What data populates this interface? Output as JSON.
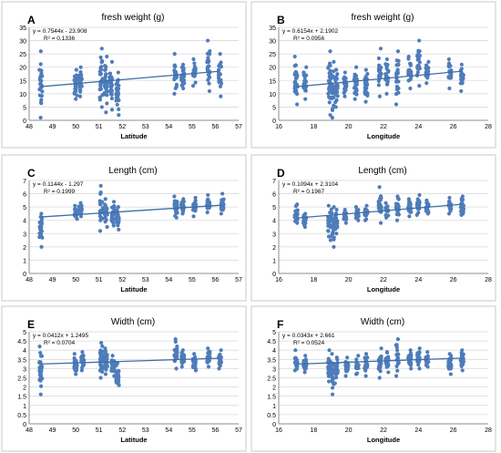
{
  "chart_data": [
    {
      "type": "scatter",
      "panel": "A",
      "title": "fresh weight (g)",
      "xlabel": "Latitude",
      "ylabel": "",
      "xlim": [
        48,
        57
      ],
      "ylim": [
        0,
        35
      ],
      "xticks": [
        "48",
        "49",
        "50",
        "51",
        "52",
        "53",
        "54",
        "55",
        "56",
        "57"
      ],
      "yticks": [
        "0",
        "5",
        "10",
        "15",
        "20",
        "25",
        "30",
        "35"
      ],
      "equation": "y = 0.7544x - 23.908",
      "r2": "R² = 0.1336",
      "trend": {
        "slope": 0.7544,
        "intercept": -23.908
      },
      "groups": [
        {
          "x": 48.5,
          "min": 1,
          "max": 26
        },
        {
          "x": 50.0,
          "min": 8,
          "max": 19
        },
        {
          "x": 50.2,
          "min": 9,
          "max": 20
        },
        {
          "x": 51.1,
          "min": 5,
          "max": 27
        },
        {
          "x": 51.3,
          "min": 3,
          "max": 24
        },
        {
          "x": 51.5,
          "min": 4,
          "max": 22
        },
        {
          "x": 51.8,
          "min": 2,
          "max": 18
        },
        {
          "x": 54.3,
          "min": 10,
          "max": 25
        },
        {
          "x": 54.6,
          "min": 12,
          "max": 21
        },
        {
          "x": 55.1,
          "min": 13,
          "max": 23
        },
        {
          "x": 55.7,
          "min": 11,
          "max": 30
        },
        {
          "x": 56.2,
          "min": 9,
          "max": 25
        }
      ]
    },
    {
      "type": "scatter",
      "panel": "B",
      "title": "fresh weight (g)",
      "xlabel": "Longitude",
      "ylabel": "",
      "xlim": [
        16,
        28
      ],
      "ylim": [
        0,
        35
      ],
      "xticks": [
        "16",
        "18",
        "20",
        "22",
        "24",
        "26",
        "28"
      ],
      "yticks": [
        "0",
        "5",
        "10",
        "15",
        "20",
        "25",
        "30",
        "35"
      ],
      "equation": "y = 0.6154x + 2.1902",
      "r2": "R² = 0.0956",
      "trend": {
        "slope": 0.6154,
        "intercept": 2.1902
      },
      "groups": [
        {
          "x": 17.0,
          "min": 6,
          "max": 24
        },
        {
          "x": 17.5,
          "min": 8,
          "max": 20
        },
        {
          "x": 18.9,
          "min": 2,
          "max": 26
        },
        {
          "x": 19.1,
          "min": 1,
          "max": 22
        },
        {
          "x": 19.3,
          "min": 5,
          "max": 19
        },
        {
          "x": 19.8,
          "min": 9,
          "max": 18
        },
        {
          "x": 20.4,
          "min": 8,
          "max": 20
        },
        {
          "x": 21.0,
          "min": 7,
          "max": 19
        },
        {
          "x": 21.8,
          "min": 9,
          "max": 27
        },
        {
          "x": 22.2,
          "min": 10,
          "max": 23
        },
        {
          "x": 22.8,
          "min": 6,
          "max": 26
        },
        {
          "x": 23.5,
          "min": 12,
          "max": 24
        },
        {
          "x": 24.0,
          "min": 13,
          "max": 30
        },
        {
          "x": 24.5,
          "min": 14,
          "max": 22
        },
        {
          "x": 25.8,
          "min": 12,
          "max": 23
        },
        {
          "x": 26.5,
          "min": 11,
          "max": 21
        }
      ]
    },
    {
      "type": "scatter",
      "panel": "C",
      "title": "Length (cm)",
      "xlabel": "Latitude",
      "ylabel": "",
      "xlim": [
        48,
        57
      ],
      "ylim": [
        0,
        7
      ],
      "xticks": [
        "48",
        "49",
        "50",
        "51",
        "52",
        "53",
        "54",
        "55",
        "56",
        "57"
      ],
      "yticks": [
        "0",
        "1",
        "2",
        "3",
        "4",
        "5",
        "6",
        "7"
      ],
      "equation": "y = 0.1144x - 1.297",
      "r2": "R² = 0.1999",
      "trend": {
        "slope": 0.1144,
        "intercept": -1.297
      },
      "groups": [
        {
          "x": 48.5,
          "min": 2.0,
          "max": 4.5
        },
        {
          "x": 50.0,
          "min": 4.1,
          "max": 5.1
        },
        {
          "x": 50.2,
          "min": 4.3,
          "max": 5.3
        },
        {
          "x": 51.1,
          "min": 3.2,
          "max": 6.6
        },
        {
          "x": 51.3,
          "min": 3.5,
          "max": 5.6
        },
        {
          "x": 51.6,
          "min": 3.6,
          "max": 5.4
        },
        {
          "x": 51.8,
          "min": 3.3,
          "max": 5.0
        },
        {
          "x": 54.3,
          "min": 4.2,
          "max": 5.8
        },
        {
          "x": 54.6,
          "min": 4.5,
          "max": 5.6
        },
        {
          "x": 55.1,
          "min": 4.3,
          "max": 5.7
        },
        {
          "x": 55.7,
          "min": 4.6,
          "max": 5.9
        },
        {
          "x": 56.3,
          "min": 4.5,
          "max": 6.0
        }
      ]
    },
    {
      "type": "scatter",
      "panel": "D",
      "title": "Length (cm)",
      "xlabel": "Longitude",
      "ylabel": "",
      "xlim": [
        16,
        28
      ],
      "ylim": [
        0,
        7
      ],
      "xticks": [
        "16",
        "18",
        "20",
        "22",
        "24",
        "26",
        "28"
      ],
      "yticks": [
        "0",
        "1",
        "2",
        "3",
        "4",
        "5",
        "6",
        "7"
      ],
      "equation": "y = 0.1094x + 2.3104",
      "r2": "R² = 0.1967",
      "trend": {
        "slope": 0.1094,
        "intercept": 2.3104
      },
      "groups": [
        {
          "x": 17.0,
          "min": 3.8,
          "max": 5.2
        },
        {
          "x": 17.5,
          "min": 3.5,
          "max": 4.5
        },
        {
          "x": 18.9,
          "min": 2.5,
          "max": 5.1
        },
        {
          "x": 19.1,
          "min": 2.0,
          "max": 5.0
        },
        {
          "x": 19.3,
          "min": 3.0,
          "max": 4.8
        },
        {
          "x": 19.8,
          "min": 3.8,
          "max": 4.8
        },
        {
          "x": 20.5,
          "min": 4.0,
          "max": 5.0
        },
        {
          "x": 21.0,
          "min": 4.0,
          "max": 5.1
        },
        {
          "x": 21.8,
          "min": 3.8,
          "max": 6.5
        },
        {
          "x": 22.2,
          "min": 4.2,
          "max": 5.3
        },
        {
          "x": 22.8,
          "min": 4.0,
          "max": 5.8
        },
        {
          "x": 23.5,
          "min": 4.3,
          "max": 5.6
        },
        {
          "x": 24.0,
          "min": 4.4,
          "max": 5.9
        },
        {
          "x": 24.5,
          "min": 4.5,
          "max": 5.5
        },
        {
          "x": 25.8,
          "min": 4.5,
          "max": 5.7
        },
        {
          "x": 26.5,
          "min": 4.4,
          "max": 5.8
        }
      ]
    },
    {
      "type": "scatter",
      "panel": "E",
      "title": "Width (cm)",
      "xlabel": "Latitude",
      "ylabel": "",
      "xlim": [
        48,
        57
      ],
      "ylim": [
        0,
        5
      ],
      "xticks": [
        "48",
        "49",
        "50",
        "51",
        "52",
        "53",
        "54",
        "55",
        "56",
        "57"
      ],
      "yticks": [
        "0",
        "0.5",
        "1",
        "1.5",
        "2",
        "2.5",
        "3",
        "3.5",
        "4",
        "4.5",
        "5"
      ],
      "equation": "y = 0.0412x + 1.2495",
      "r2": "R² = 0.0704",
      "trend": {
        "slope": 0.0412,
        "intercept": 1.2495
      },
      "groups": [
        {
          "x": 48.5,
          "min": 1.6,
          "max": 4.2
        },
        {
          "x": 50.0,
          "min": 2.7,
          "max": 3.8
        },
        {
          "x": 50.3,
          "min": 2.9,
          "max": 3.9
        },
        {
          "x": 51.1,
          "min": 2.5,
          "max": 4.4
        },
        {
          "x": 51.3,
          "min": 2.7,
          "max": 4.1
        },
        {
          "x": 51.6,
          "min": 2.6,
          "max": 3.7
        },
        {
          "x": 51.8,
          "min": 2.1,
          "max": 3.3
        },
        {
          "x": 54.3,
          "min": 3.0,
          "max": 4.6
        },
        {
          "x": 54.6,
          "min": 3.1,
          "max": 4.0
        },
        {
          "x": 55.1,
          "min": 2.9,
          "max": 3.8
        },
        {
          "x": 55.7,
          "min": 3.1,
          "max": 4.1
        },
        {
          "x": 56.2,
          "min": 3.0,
          "max": 4.0
        }
      ]
    },
    {
      "type": "scatter",
      "panel": "F",
      "title": "Width (cm)",
      "xlabel": "Longitude",
      "ylabel": "",
      "xlim": [
        16,
        28
      ],
      "ylim": [
        0,
        5
      ],
      "xticks": [
        "16",
        "18",
        "20",
        "22",
        "24",
        "26",
        "28"
      ],
      "yticks": [
        "0",
        "0.5",
        "1",
        "1.5",
        "2",
        "2.5",
        "3",
        "3.5",
        "4",
        "4.5",
        "5"
      ],
      "equation": "y = 0.0343x + 2.661",
      "r2": "R² = 0.0524",
      "trend": {
        "slope": 0.0343,
        "intercept": 2.661
      },
      "groups": [
        {
          "x": 17.0,
          "min": 2.9,
          "max": 4.0
        },
        {
          "x": 17.5,
          "min": 2.8,
          "max": 3.7
        },
        {
          "x": 18.9,
          "min": 2.3,
          "max": 4.0
        },
        {
          "x": 19.1,
          "min": 1.6,
          "max": 3.8
        },
        {
          "x": 19.3,
          "min": 2.2,
          "max": 3.6
        },
        {
          "x": 19.9,
          "min": 2.6,
          "max": 3.6
        },
        {
          "x": 20.5,
          "min": 2.7,
          "max": 3.7
        },
        {
          "x": 21.0,
          "min": 2.6,
          "max": 3.8
        },
        {
          "x": 21.8,
          "min": 2.5,
          "max": 4.1
        },
        {
          "x": 22.2,
          "min": 2.8,
          "max": 3.9
        },
        {
          "x": 22.8,
          "min": 2.6,
          "max": 4.6
        },
        {
          "x": 23.5,
          "min": 3.0,
          "max": 4.0
        },
        {
          "x": 24.0,
          "min": 3.0,
          "max": 4.1
        },
        {
          "x": 24.5,
          "min": 3.1,
          "max": 3.9
        },
        {
          "x": 25.8,
          "min": 2.7,
          "max": 3.8
        },
        {
          "x": 26.5,
          "min": 2.9,
          "max": 4.0
        }
      ]
    }
  ],
  "colors": {
    "marker": "#4f7cba",
    "trendline": "#3c6ea8",
    "grid": "#d9d9d9",
    "frame": "#c8c8c8"
  }
}
